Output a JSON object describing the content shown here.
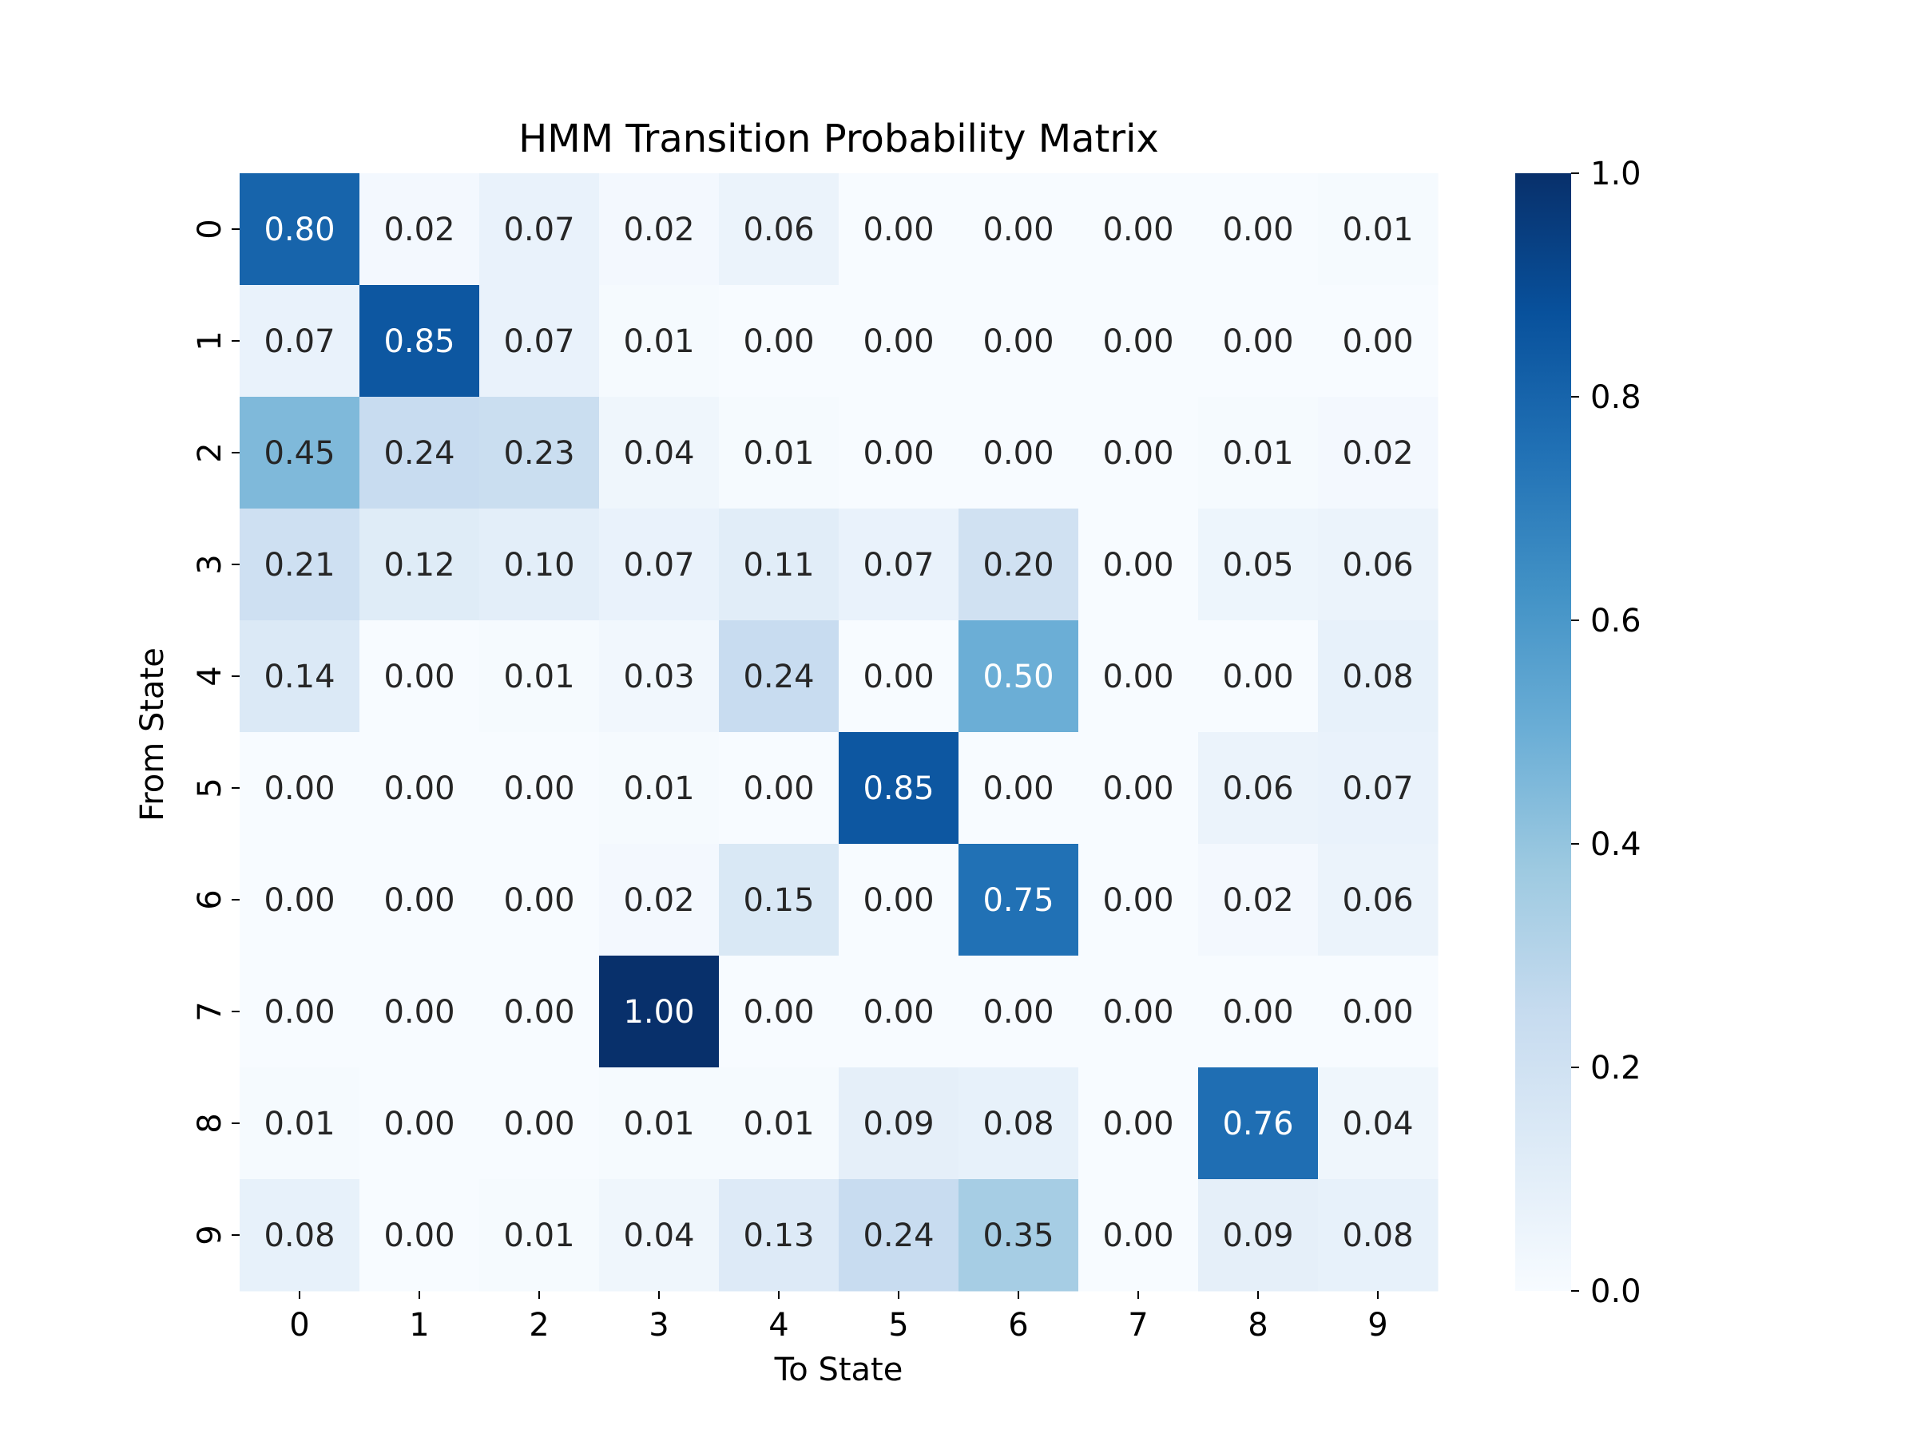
{
  "chart_data": {
    "type": "heatmap",
    "title": "HMM Transition Probability Matrix",
    "xlabel": "To State",
    "ylabel": "From State",
    "x_categories": [
      "0",
      "1",
      "2",
      "3",
      "4",
      "5",
      "6",
      "7",
      "8",
      "9"
    ],
    "y_categories": [
      "0",
      "1",
      "2",
      "3",
      "4",
      "5",
      "6",
      "7",
      "8",
      "9"
    ],
    "values": [
      [
        0.8,
        0.02,
        0.07,
        0.02,
        0.06,
        0.0,
        0.0,
        0.0,
        0.0,
        0.01
      ],
      [
        0.07,
        0.85,
        0.07,
        0.01,
        0.0,
        0.0,
        0.0,
        0.0,
        0.0,
        0.0
      ],
      [
        0.45,
        0.24,
        0.23,
        0.04,
        0.01,
        0.0,
        0.0,
        0.0,
        0.01,
        0.02
      ],
      [
        0.21,
        0.12,
        0.1,
        0.07,
        0.11,
        0.07,
        0.2,
        0.0,
        0.05,
        0.06
      ],
      [
        0.14,
        0.0,
        0.01,
        0.03,
        0.24,
        0.0,
        0.5,
        0.0,
        0.0,
        0.08
      ],
      [
        0.0,
        0.0,
        0.0,
        0.01,
        0.0,
        0.85,
        0.0,
        0.0,
        0.06,
        0.07
      ],
      [
        0.0,
        0.0,
        0.0,
        0.02,
        0.15,
        0.0,
        0.75,
        0.0,
        0.02,
        0.06
      ],
      [
        0.0,
        0.0,
        0.0,
        1.0,
        0.0,
        0.0,
        0.0,
        0.0,
        0.0,
        0.0
      ],
      [
        0.01,
        0.0,
        0.0,
        0.01,
        0.01,
        0.09,
        0.08,
        0.0,
        0.76,
        0.04
      ],
      [
        0.08,
        0.0,
        0.01,
        0.04,
        0.13,
        0.24,
        0.35,
        0.0,
        0.09,
        0.08
      ]
    ],
    "value_format": "0.00",
    "colormap": "Blues",
    "colormap_stops": [
      "#f7fbff",
      "#deebf7",
      "#c6dbef",
      "#9ecae1",
      "#6baed6",
      "#4292c6",
      "#2171b5",
      "#08519c",
      "#08306b"
    ],
    "value_range": [
      0.0,
      1.0
    ],
    "colorbar": {
      "ticks": [
        0.0,
        0.2,
        0.4,
        0.6,
        0.8,
        1.0
      ],
      "tick_labels": [
        "0.0",
        "0.2",
        "0.4",
        "0.6",
        "0.8",
        "1.0"
      ]
    }
  }
}
